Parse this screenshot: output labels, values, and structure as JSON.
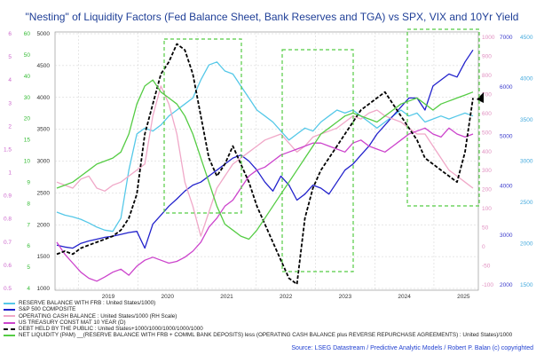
{
  "chart_data": {
    "type": "line",
    "title": "\"Nesting\" of Liquidity Factors (Fed Balance Sheet, Bank Reserves and TGA) vs SPX, VIX and 10Yr Yield",
    "x_ticks": [
      "2019",
      "2020",
      "2021",
      "2022",
      "2023",
      "2024",
      "2025"
    ],
    "left_axes": [
      {
        "name": "pink-axis",
        "color": "#cc66cc",
        "ticks": [
          "6",
          "5",
          "4",
          "3",
          "2",
          "1.5",
          "1",
          "0.9",
          "0.8",
          "0.7",
          "0.6",
          "0.5"
        ]
      },
      {
        "name": "green-axis",
        "color": "#33bb33",
        "ticks": [
          "60",
          "50",
          "40",
          "30",
          "20",
          "15",
          "10",
          "9",
          "8",
          "7",
          "6",
          "5",
          "4"
        ]
      },
      {
        "name": "black-axis",
        "color": "#333333",
        "ticks": [
          "5000",
          "4500",
          "4000",
          "3500",
          "3000",
          "2500",
          "2000",
          "1500",
          "1000"
        ]
      }
    ],
    "right_axes": [
      {
        "name": "rh-pink-axis",
        "color": "#e08fc0",
        "ticks": [
          "1000",
          "900",
          "800",
          "700",
          "600",
          "500",
          "400",
          "300",
          "200",
          "100",
          "50",
          "0",
          "-50",
          "-100"
        ]
      },
      {
        "name": "rh-blue-axis",
        "color": "#3a3acc",
        "ticks": [
          "7000",
          "6000",
          "5000",
          "4000",
          "3000",
          "2000"
        ]
      },
      {
        "name": "rh-cyan-axis",
        "color": "#44aadd",
        "ticks": [
          "4500",
          "4000",
          "3500",
          "3000",
          "2500",
          "2000",
          "1500"
        ]
      }
    ],
    "series": [
      {
        "name": "RESERVE BALANCE WITH FRB : United States/1000)",
        "color": "#55c8e8",
        "style": "solid",
        "y": [
          1700,
          1650,
          1620,
          1580,
          1520,
          1450,
          1400,
          1380,
          1600,
          2400,
          3000,
          3100,
          3050,
          3150,
          3300,
          3400,
          3500,
          3600,
          3900,
          4150,
          4200,
          4050,
          4000,
          3800,
          3600,
          3400,
          3300,
          3200,
          3050,
          2900,
          3000,
          3100,
          3050,
          3200,
          3300,
          3400,
          3350,
          3400,
          3300,
          3200,
          3100,
          3200,
          3300,
          3400,
          3300,
          3350,
          3200,
          3250,
          3300,
          3250,
          3300,
          3350,
          3300
        ]
      },
      {
        "name": "S&P 500 COMPOSITE",
        "color": "#2222cc",
        "style": "solid",
        "y": [
          1150,
          1120,
          1100,
          1180,
          1220,
          1250,
          1280,
          1300,
          1330,
          1360,
          1380,
          1100,
          1500,
          1650,
          1800,
          1920,
          2050,
          2150,
          2200,
          2300,
          2400,
          2500,
          2600,
          2650,
          2550,
          2400,
          2200,
          2050,
          2300,
          2150,
          1900,
          2000,
          2150,
          2100,
          2000,
          2200,
          2400,
          2500,
          2650,
          2800,
          3000,
          3150,
          3300,
          3450,
          3600,
          3600,
          3400,
          3800,
          3900,
          4000,
          3950,
          4200,
          4400
        ]
      },
      {
        "name": "OPERATING CASH BALANCE : United States/1000 (RH Scale)",
        "color": "#f0a8c8",
        "style": "solid",
        "y": [
          2200,
          2150,
          2100,
          2250,
          2300,
          2100,
          2050,
          2150,
          2200,
          2300,
          2400,
          2500,
          3300,
          3800,
          3500,
          3000,
          2200,
          1800,
          1300,
          1700,
          2100,
          2300,
          2500,
          2600,
          2700,
          2800,
          2900,
          2950,
          3000,
          2850,
          2700,
          2800,
          2950,
          3000,
          3050,
          3100,
          3200,
          3300,
          3250,
          3350,
          3400,
          3300,
          3250,
          3200,
          3100,
          3000,
          3000,
          2800,
          2600,
          2400,
          2300,
          2200,
          2100
        ]
      },
      {
        "name": "US TREASURY CONST MAT 10 YEAR (D)",
        "color": "#cc44cc",
        "style": "solid",
        "y": [
          1200,
          1000,
          850,
          700,
          600,
          550,
          620,
          700,
          750,
          650,
          800,
          900,
          950,
          900,
          850,
          880,
          950,
          1050,
          1200,
          1450,
          1600,
          1800,
          1900,
          2100,
          2300,
          2400,
          2450,
          2550,
          2650,
          2700,
          2750,
          2800,
          2850,
          2850,
          2800,
          2750,
          2700,
          2850,
          2900,
          2800,
          2750,
          2700,
          2800,
          2900,
          3000,
          3050,
          3100,
          3000,
          2950,
          3100,
          3000,
          2950,
          3000
        ]
      },
      {
        "name": "DEBT HELD BY THE PUBLIC : United States+1000/1000/1000/1000/1000",
        "color": "#000000",
        "style": "dash",
        "y": [
          1000,
          1050,
          1000,
          1100,
          1150,
          1200,
          1250,
          1300,
          1400,
          1600,
          2000,
          3000,
          3500,
          4000,
          4200,
          4500,
          4400,
          4000,
          3300,
          2600,
          2300,
          2500,
          2800,
          2500,
          2200,
          1800,
          1500,
          1200,
          900,
          600,
          500,
          1600,
          2100,
          2400,
          2600,
          2800,
          3000,
          3200,
          3400,
          3500,
          3600,
          3700,
          3500,
          3300,
          3100,
          2900,
          2600,
          2500,
          2400,
          2300,
          2200,
          2700,
          3600
        ]
      },
      {
        "name": "NET LIQUIDITY (PAM) __(RESERVE BALANCE WITH FRB + COMML BANK DEPOSITS) less (OPERATING CASH BALANCE plus REVERSE REPURCHASE AGREEMENTS) : United States)/1000",
        "color": "#55cc44",
        "style": "solid",
        "y": [
          2100,
          2150,
          2200,
          2300,
          2400,
          2500,
          2550,
          2600,
          2700,
          3000,
          3500,
          3800,
          3900,
          3700,
          3600,
          3500,
          3300,
          3000,
          2600,
          2200,
          1800,
          1500,
          1400,
          1300,
          1250,
          1400,
          1600,
          1800,
          2000,
          2200,
          2400,
          2600,
          2800,
          3000,
          3100,
          3200,
          3300,
          3350,
          3300,
          3250,
          3200,
          3300,
          3400,
          3500,
          3550,
          3600,
          3500,
          3400,
          3500,
          3550,
          3600,
          3650,
          3700
        ]
      }
    ],
    "highlight_boxes": [
      {
        "from": "2020.6",
        "to": "2021.5"
      },
      {
        "from": "2022.3",
        "to": "2023.3"
      },
      {
        "from": "2024.2",
        "to": "2025.3"
      }
    ]
  },
  "legend": [
    {
      "label": "RESERVE BALANCE WITH FRB : United States/1000)",
      "color": "#55c8e8",
      "style": "solid"
    },
    {
      "label": "S&P 500 COMPOSITE",
      "color": "#2222cc",
      "style": "solid"
    },
    {
      "label": "OPERATING CASH BALANCE : United States/1000 (RH Scale)",
      "color": "#f0a8c8",
      "style": "solid"
    },
    {
      "label": "US TREASURY CONST MAT 10 YEAR (D)",
      "color": "#cc44cc",
      "style": "solid"
    },
    {
      "label": "DEBT HELD BY THE PUBLIC : United States+1000/1000/1000/1000/1000",
      "color": "#000000",
      "style": "dash"
    },
    {
      "label": "NET LIQUIDITY (PAM) __(RESERVE BALANCE WITH FRB + COMML BANK DEPOSITS) less (OPERATING CASH BALANCE plus REVERSE REPURCHASE AGREEMENTS) : United States)/1000",
      "color": "#55cc44",
      "style": "solid"
    }
  ],
  "source": "Source: LSEG Datastream / Predictive Analytic Models / Robert P. Balan (c) copyrighted"
}
